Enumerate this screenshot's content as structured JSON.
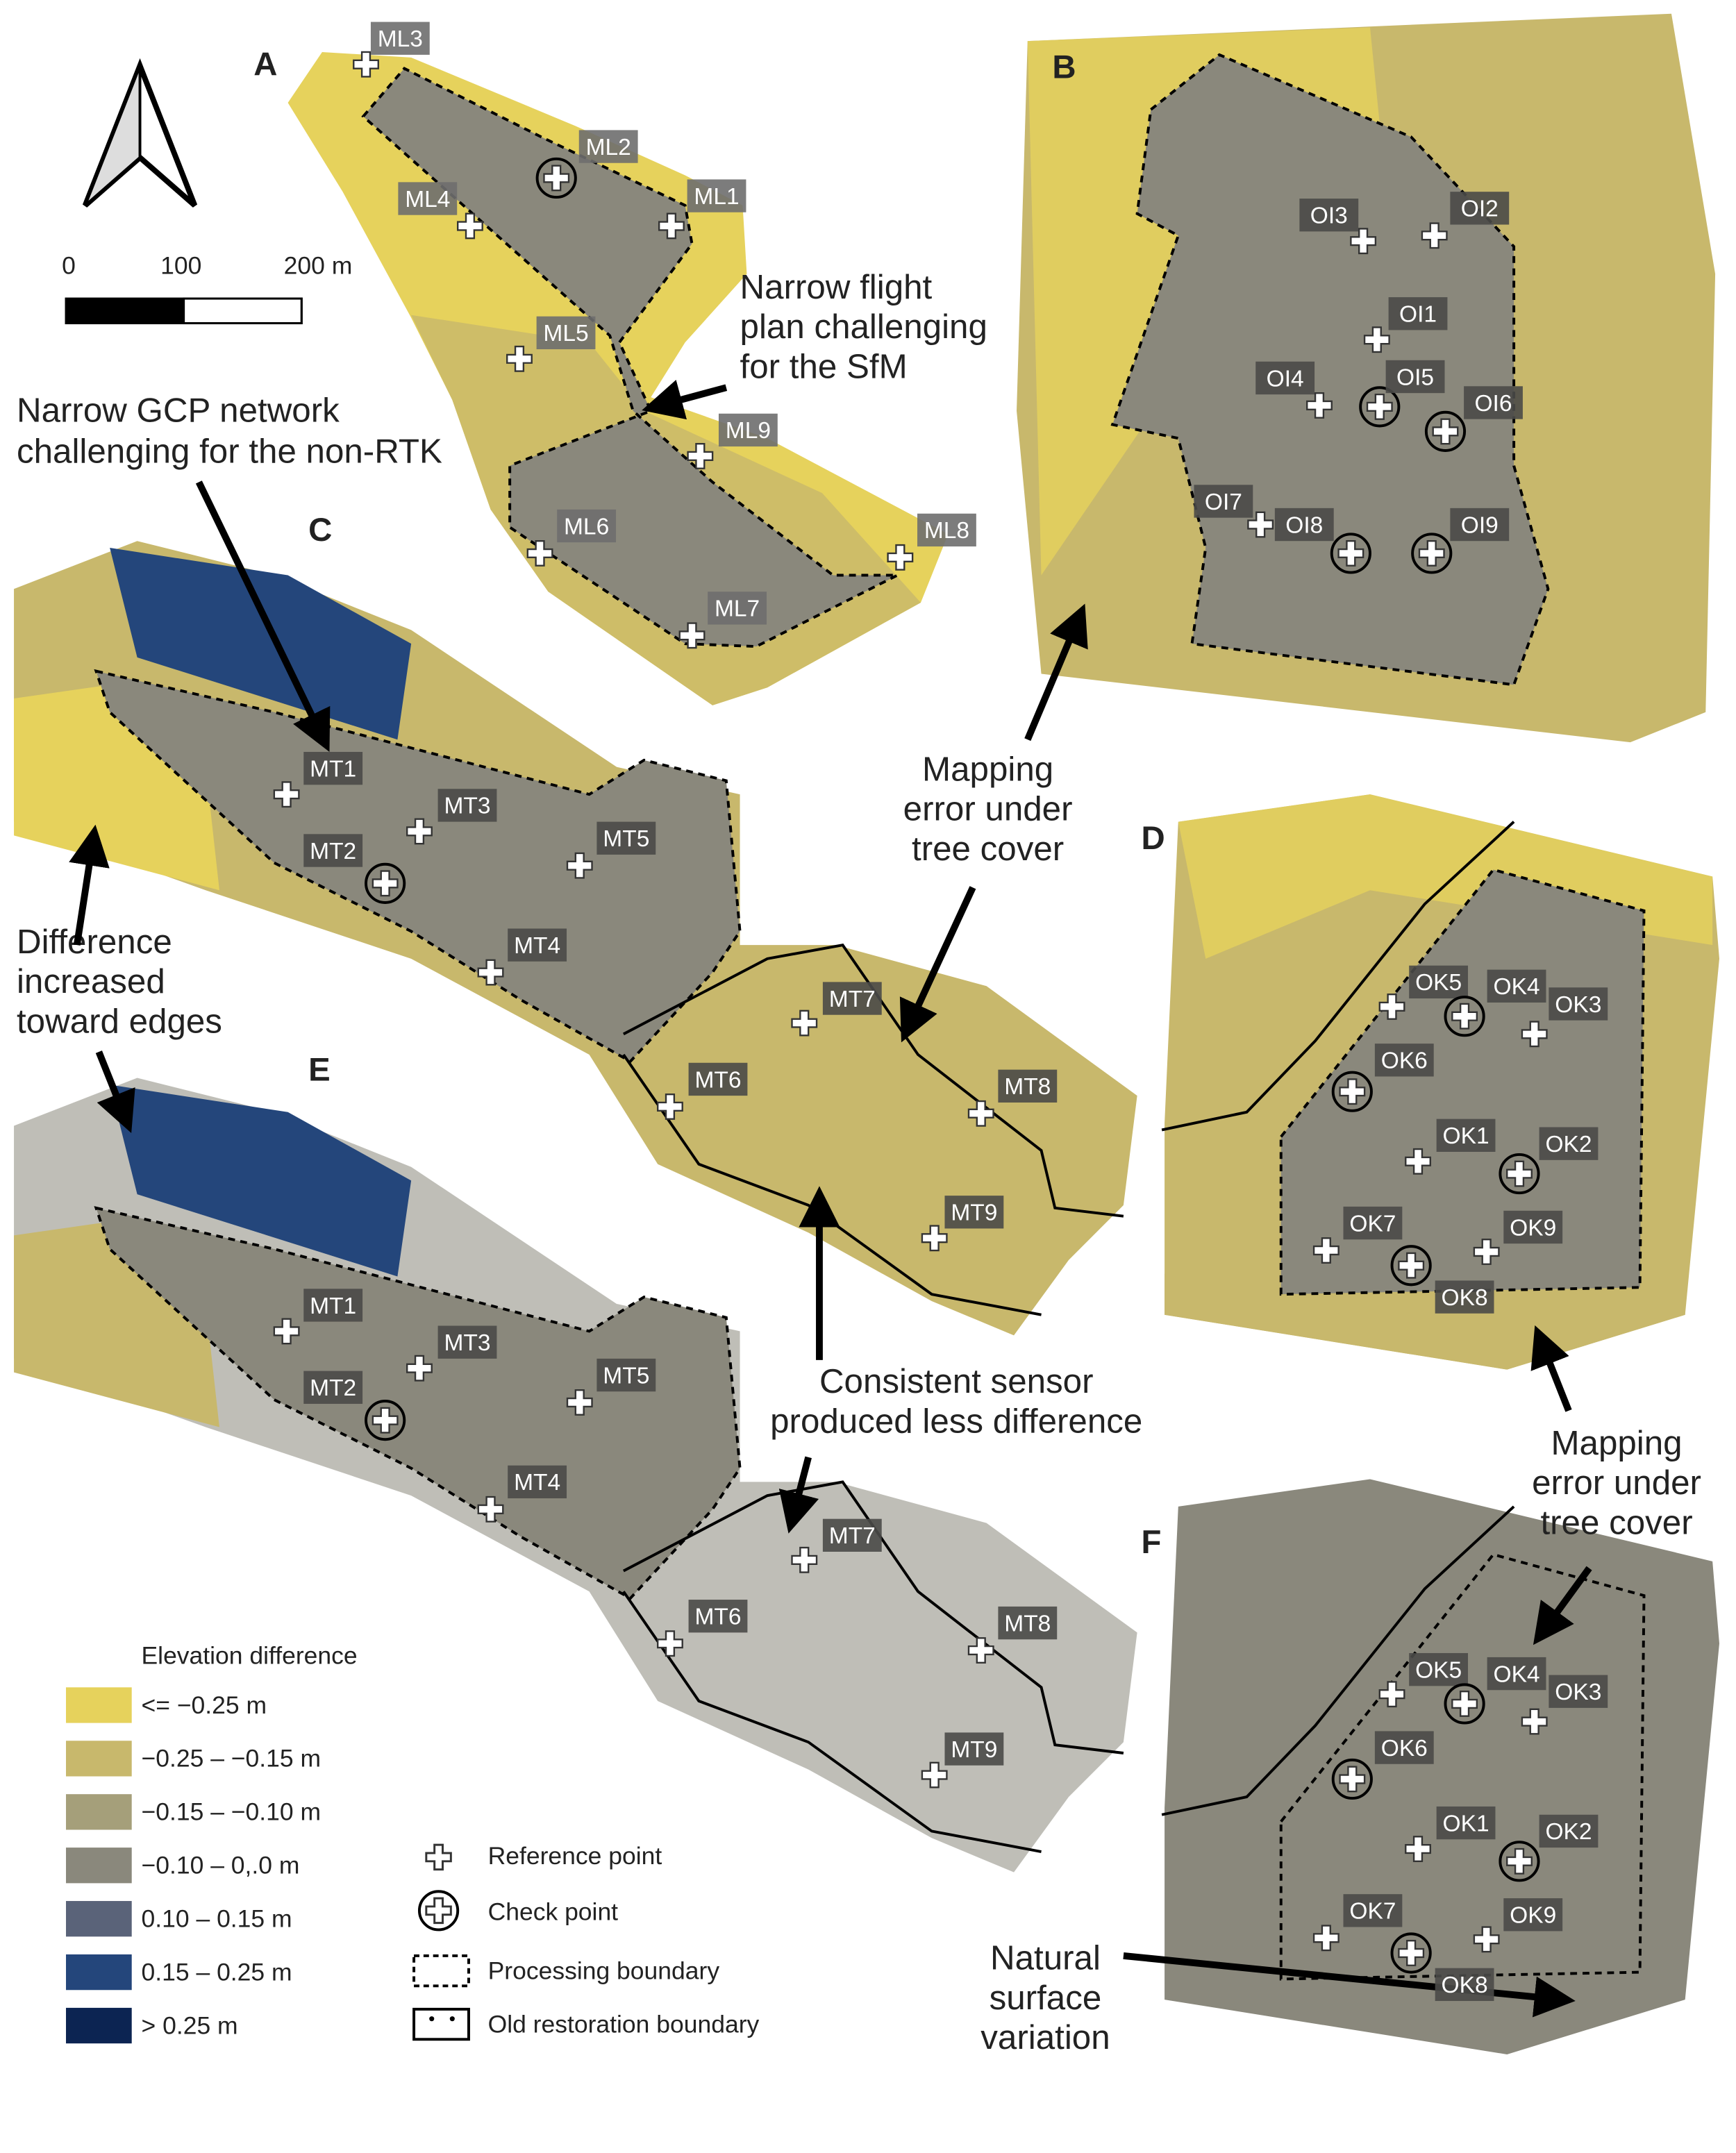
{
  "scale_bar": {
    "labels": [
      "0",
      "100",
      "200 m"
    ]
  },
  "panels": [
    {
      "letter": "A",
      "points": [
        "ML3",
        "ML2",
        "ML1",
        "ML4",
        "ML5",
        "ML9",
        "ML6",
        "ML8",
        "ML7"
      ]
    },
    {
      "letter": "B",
      "points": [
        "OI3",
        "OI2",
        "OI1",
        "OI4",
        "OI5",
        "OI6",
        "OI7",
        "OI8",
        "OI9"
      ]
    },
    {
      "letter": "C",
      "points": [
        "MT1",
        "MT3",
        "MT2",
        "MT5",
        "MT4",
        "MT7",
        "MT6",
        "MT8",
        "MT9"
      ]
    },
    {
      "letter": "D",
      "points": [
        "OK5",
        "OK4",
        "OK3",
        "OK6",
        "OK1",
        "OK2",
        "OK7",
        "OK9",
        "OK8"
      ]
    },
    {
      "letter": "E",
      "points": [
        "MT1",
        "MT3",
        "MT2",
        "MT5",
        "MT4",
        "MT7",
        "MT6",
        "MT8",
        "MT9"
      ]
    },
    {
      "letter": "F",
      "points": [
        "OK5",
        "OK4",
        "OK3",
        "OK6",
        "OK1",
        "OK2",
        "OK7",
        "OK9",
        "OK8"
      ]
    }
  ],
  "annotations": [
    {
      "lines": [
        "Narrow flight",
        "plan challenging",
        "for the SfM"
      ]
    },
    {
      "lines": [
        "Narrow GCP network",
        "challenging for the non-RTK"
      ]
    },
    {
      "lines": [
        "Mapping",
        "error under",
        "tree cover"
      ]
    },
    {
      "lines": [
        "Difference",
        "increased",
        "toward edges"
      ]
    },
    {
      "lines": [
        "Consistent sensor",
        "produced less difference"
      ]
    },
    {
      "lines": [
        "Mapping",
        "error under",
        "tree cover"
      ]
    },
    {
      "lines": [
        "Natural",
        "surface",
        "variation"
      ]
    }
  ],
  "legend": {
    "title": "Elevation difference",
    "classes": [
      {
        "label": "<= −0.25 m",
        "color": "#e6d25c"
      },
      {
        "label": "−0.25 – −0.15 m",
        "color": "#c8b86c"
      },
      {
        "label": "−0.15 – −0.10 m",
        "color": "#a59f7a"
      },
      {
        "label": "−0.10 – 0,.0 m",
        "color": "#8a887c"
      },
      {
        "label": "0.10 – 0.15 m",
        "color": "#5a6379"
      },
      {
        "label": "0.15 – 0.25 m",
        "color": "#24467b"
      },
      {
        "label": "> 0.25 m",
        "color": "#0c2452"
      }
    ],
    "symbols": [
      "Reference point",
      "Check point",
      "Processing boundary",
      "Old restoration boundary"
    ]
  }
}
